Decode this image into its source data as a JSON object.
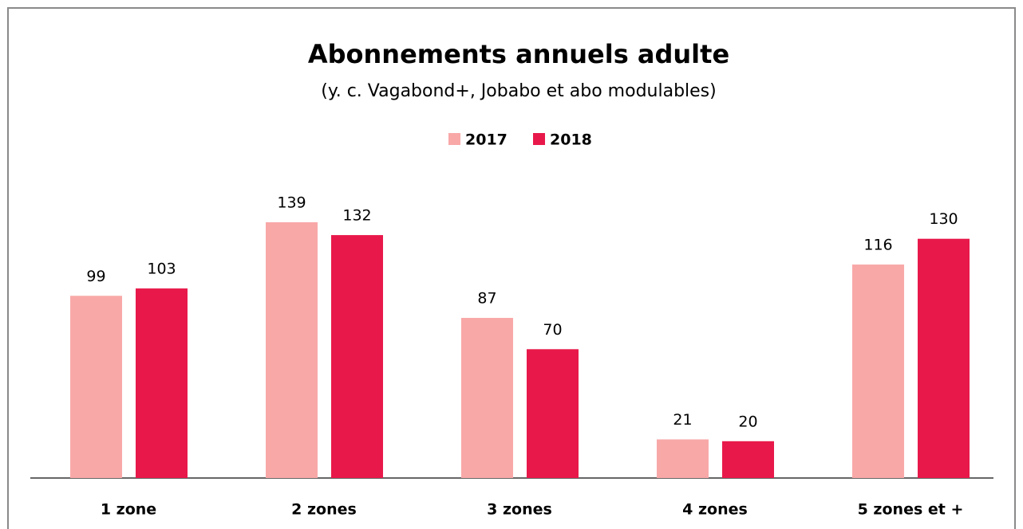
{
  "chart_data": {
    "type": "bar",
    "title": "Abonnements annuels adulte",
    "subtitle": "(y. c. Vagabond+, Jobabo et abo modulables)",
    "categories": [
      "1 zone",
      "2 zones",
      "3 zones",
      "4 zones",
      "5 zones et +"
    ],
    "series": [
      {
        "name": "2017",
        "color": "#f9a8a8",
        "values": [
          99,
          139,
          87,
          21,
          116
        ]
      },
      {
        "name": "2018",
        "color": "#e8194a",
        "values": [
          103,
          132,
          70,
          20,
          130
        ]
      }
    ],
    "legend": "top"
  }
}
